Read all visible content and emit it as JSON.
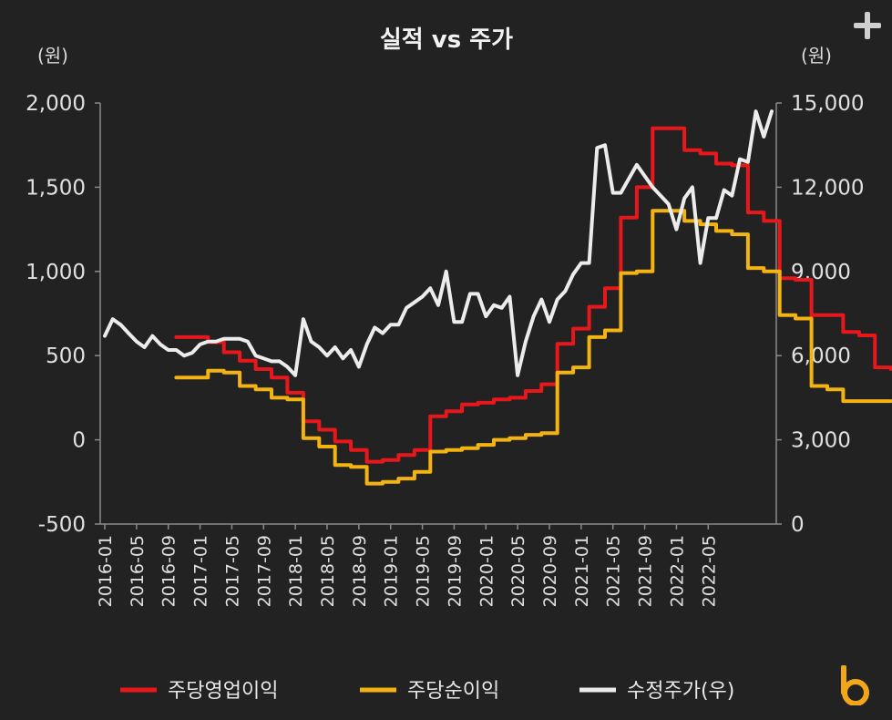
{
  "header": {
    "expand_icon": "plus-icon"
  },
  "brand": {
    "logo_icon": "b-logo-icon",
    "color": "#f2a71b"
  },
  "chart_data": {
    "type": "line",
    "title": "실적 vs 주가",
    "y_left_unit": "(원)",
    "y_right_unit": "(원)",
    "y_left_range": [
      -500,
      2000
    ],
    "y_right_range": [
      0,
      15000
    ],
    "y_left_ticks": [
      "2,000",
      "1,500",
      "1,000",
      "500",
      "0",
      "-500"
    ],
    "y_right_ticks": [
      "15,000",
      "12,000",
      "9,000",
      "6,000",
      "3,000",
      "0"
    ],
    "x_tick_labels": [
      "2016-01",
      "2016-05",
      "2016-09",
      "2017-01",
      "2017-05",
      "2017-09",
      "2018-01",
      "2018-05",
      "2018-09",
      "2019-01",
      "2019-05",
      "2019-09",
      "2020-01",
      "2020-05",
      "2020-09",
      "2021-01",
      "2021-05",
      "2021-09",
      "2022-01",
      "2022-05"
    ],
    "x_start": "2016-01",
    "x_months": 80,
    "grid": false,
    "legend_position": "bottom",
    "series": [
      {
        "name": "주당영업이익",
        "axis": "left",
        "color": "#e8171b",
        "points": [
          [
            9,
            610
          ],
          [
            11,
            610
          ],
          [
            13,
            580
          ],
          [
            15,
            520
          ],
          [
            17,
            470
          ],
          [
            19,
            420
          ],
          [
            21,
            370
          ],
          [
            23,
            280
          ],
          [
            25,
            110
          ],
          [
            27,
            60
          ],
          [
            29,
            -10
          ],
          [
            31,
            -60
          ],
          [
            33,
            -130
          ],
          [
            35,
            -120
          ],
          [
            37,
            -90
          ],
          [
            39,
            -60
          ],
          [
            41,
            140
          ],
          [
            43,
            170
          ],
          [
            45,
            210
          ],
          [
            47,
            220
          ],
          [
            49,
            240
          ],
          [
            51,
            250
          ],
          [
            53,
            290
          ],
          [
            55,
            330
          ],
          [
            57,
            570
          ],
          [
            59,
            660
          ],
          [
            61,
            790
          ],
          [
            63,
            900
          ],
          [
            65,
            1320
          ],
          [
            67,
            1500
          ],
          [
            69,
            1850
          ],
          [
            71,
            1850
          ],
          [
            73,
            1720
          ],
          [
            75,
            1700
          ],
          [
            77,
            1640
          ],
          [
            79,
            1630
          ],
          [
            81,
            1350
          ],
          [
            83,
            1300
          ],
          [
            85,
            960
          ],
          [
            87,
            950
          ],
          [
            89,
            740
          ],
          [
            91,
            740
          ],
          [
            93,
            640
          ],
          [
            95,
            620
          ],
          [
            97,
            430
          ],
          [
            99,
            420
          ]
        ]
      },
      {
        "name": "주당순이익",
        "axis": "left",
        "color": "#f3b313",
        "points": [
          [
            9,
            370
          ],
          [
            11,
            370
          ],
          [
            13,
            410
          ],
          [
            15,
            400
          ],
          [
            17,
            320
          ],
          [
            19,
            300
          ],
          [
            21,
            250
          ],
          [
            23,
            240
          ],
          [
            25,
            10
          ],
          [
            27,
            -40
          ],
          [
            29,
            -150
          ],
          [
            31,
            -160
          ],
          [
            33,
            -260
          ],
          [
            35,
            -250
          ],
          [
            37,
            -230
          ],
          [
            39,
            -190
          ],
          [
            41,
            -70
          ],
          [
            43,
            -60
          ],
          [
            45,
            -50
          ],
          [
            47,
            -30
          ],
          [
            49,
            0
          ],
          [
            51,
            10
          ],
          [
            53,
            30
          ],
          [
            55,
            40
          ],
          [
            57,
            400
          ],
          [
            59,
            430
          ],
          [
            61,
            610
          ],
          [
            63,
            650
          ],
          [
            65,
            990
          ],
          [
            67,
            1000
          ],
          [
            69,
            1360
          ],
          [
            71,
            1360
          ],
          [
            73,
            1300
          ],
          [
            75,
            1280
          ],
          [
            77,
            1240
          ],
          [
            79,
            1220
          ],
          [
            81,
            1020
          ],
          [
            83,
            1000
          ],
          [
            85,
            740
          ],
          [
            87,
            720
          ],
          [
            89,
            320
          ],
          [
            91,
            300
          ],
          [
            93,
            230
          ],
          [
            95,
            230
          ],
          [
            97,
            230
          ],
          [
            99,
            230
          ]
        ]
      },
      {
        "name": "수정주가(우)",
        "axis": "right",
        "color": "#ececec",
        "points": [
          [
            0,
            6700
          ],
          [
            1,
            7300
          ],
          [
            2,
            7100
          ],
          [
            3,
            6800
          ],
          [
            4,
            6500
          ],
          [
            5,
            6300
          ],
          [
            6,
            6700
          ],
          [
            7,
            6400
          ],
          [
            8,
            6200
          ],
          [
            9,
            6200
          ],
          [
            10,
            6000
          ],
          [
            11,
            6100
          ],
          [
            12,
            6400
          ],
          [
            13,
            6500
          ],
          [
            14,
            6500
          ],
          [
            15,
            6600
          ],
          [
            16,
            6600
          ],
          [
            17,
            6600
          ],
          [
            18,
            6500
          ],
          [
            19,
            6000
          ],
          [
            20,
            5900
          ],
          [
            21,
            5800
          ],
          [
            22,
            5800
          ],
          [
            23,
            5600
          ],
          [
            24,
            5300
          ],
          [
            25,
            7300
          ],
          [
            26,
            6500
          ],
          [
            27,
            6300
          ],
          [
            28,
            6000
          ],
          [
            29,
            6300
          ],
          [
            30,
            5900
          ],
          [
            31,
            6200
          ],
          [
            32,
            5600
          ],
          [
            33,
            6400
          ],
          [
            34,
            7000
          ],
          [
            35,
            6800
          ],
          [
            36,
            7100
          ],
          [
            37,
            7100
          ],
          [
            38,
            7700
          ],
          [
            39,
            7900
          ],
          [
            40,
            8100
          ],
          [
            41,
            8400
          ],
          [
            42,
            7800
          ],
          [
            43,
            9000
          ],
          [
            44,
            7200
          ],
          [
            45,
            7200
          ],
          [
            46,
            8200
          ],
          [
            47,
            8200
          ],
          [
            48,
            7400
          ],
          [
            49,
            7800
          ],
          [
            50,
            7700
          ],
          [
            51,
            8100
          ],
          [
            52,
            5300
          ],
          [
            53,
            6500
          ],
          [
            54,
            7400
          ],
          [
            55,
            8000
          ],
          [
            56,
            7200
          ],
          [
            57,
            8000
          ],
          [
            58,
            8300
          ],
          [
            59,
            8900
          ],
          [
            60,
            9300
          ],
          [
            61,
            9300
          ],
          [
            62,
            13400
          ],
          [
            63,
            13500
          ],
          [
            64,
            11800
          ],
          [
            65,
            11800
          ],
          [
            66,
            12300
          ],
          [
            67,
            12800
          ],
          [
            68,
            12400
          ],
          [
            69,
            12000
          ],
          [
            70,
            11700
          ],
          [
            71,
            11400
          ],
          [
            72,
            10500
          ],
          [
            73,
            11600
          ],
          [
            74,
            12000
          ],
          [
            75,
            9300
          ],
          [
            76,
            10900
          ],
          [
            77,
            10900
          ],
          [
            78,
            11900
          ],
          [
            79,
            11700
          ],
          [
            80,
            13000
          ],
          [
            81,
            12900
          ],
          [
            82,
            14700
          ],
          [
            83,
            13800
          ],
          [
            84,
            14700
          ]
        ]
      }
    ]
  }
}
